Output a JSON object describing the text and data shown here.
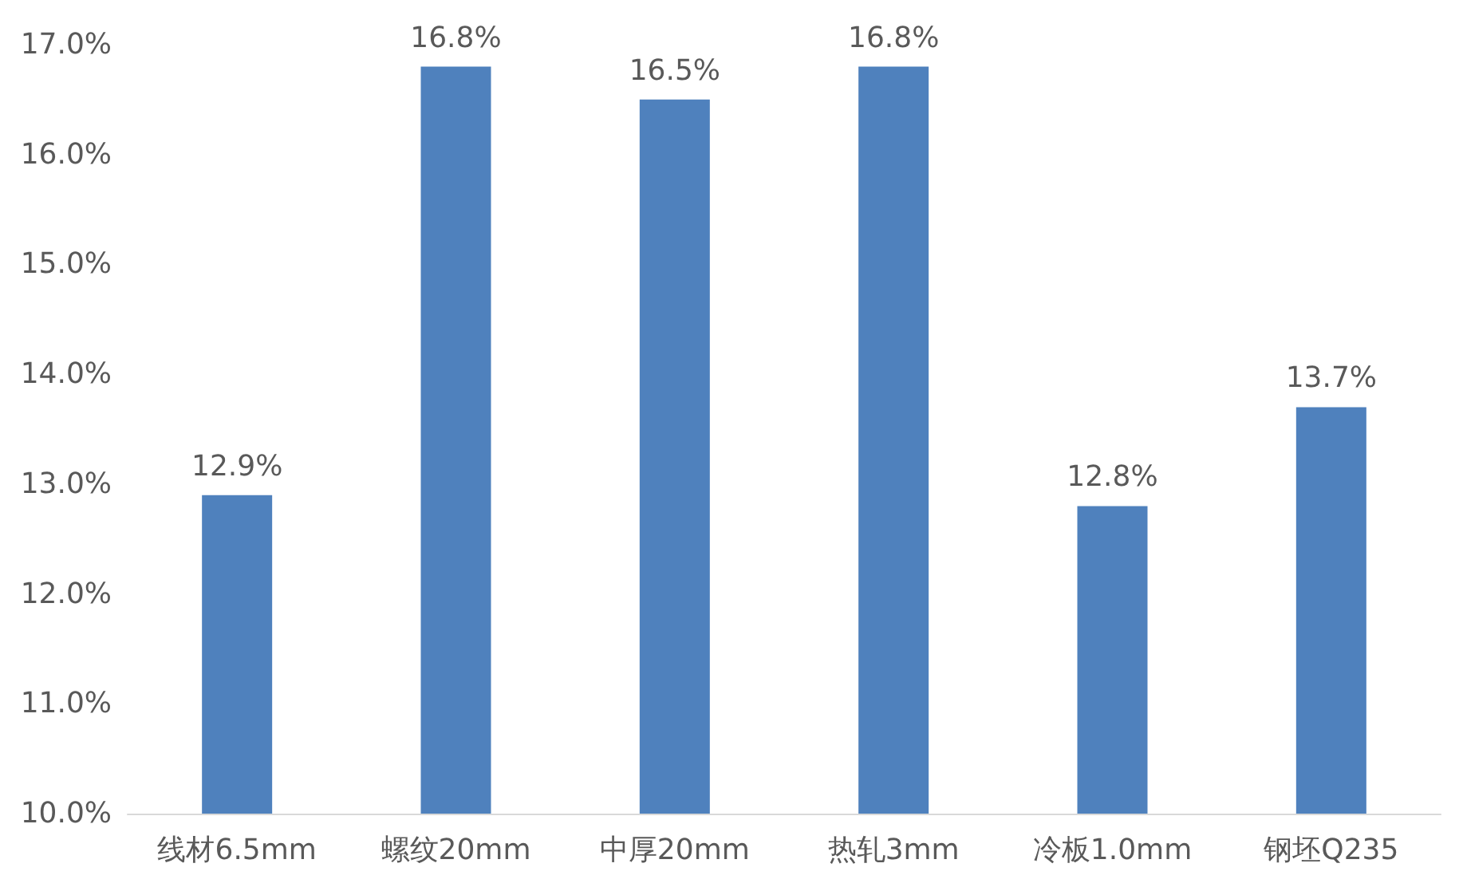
{
  "chart_data": {
    "type": "bar",
    "categories": [
      "线材6.5mm",
      "螺纹20mm",
      "中厚20mm",
      "热轧3mm",
      "冷板1.0mm",
      "钢坯Q235"
    ],
    "values": [
      12.9,
      16.8,
      16.5,
      16.8,
      12.8,
      13.7
    ],
    "value_labels": [
      "12.9%",
      "16.8%",
      "16.5%",
      "16.8%",
      "12.8%",
      "13.7%"
    ],
    "color": "#4f81bd",
    "ylim": [
      10,
      17
    ],
    "yticks": [
      {
        "value": 10,
        "label": "10.0%"
      },
      {
        "value": 11,
        "label": "11.0%"
      },
      {
        "value": 12,
        "label": "12.0%"
      },
      {
        "value": 13,
        "label": "13.0%"
      },
      {
        "value": 14,
        "label": "14.0%"
      },
      {
        "value": 15,
        "label": "15.0%"
      },
      {
        "value": 16,
        "label": "16.0%"
      },
      {
        "value": 17,
        "label": "17.0%"
      }
    ],
    "grid": false
  }
}
